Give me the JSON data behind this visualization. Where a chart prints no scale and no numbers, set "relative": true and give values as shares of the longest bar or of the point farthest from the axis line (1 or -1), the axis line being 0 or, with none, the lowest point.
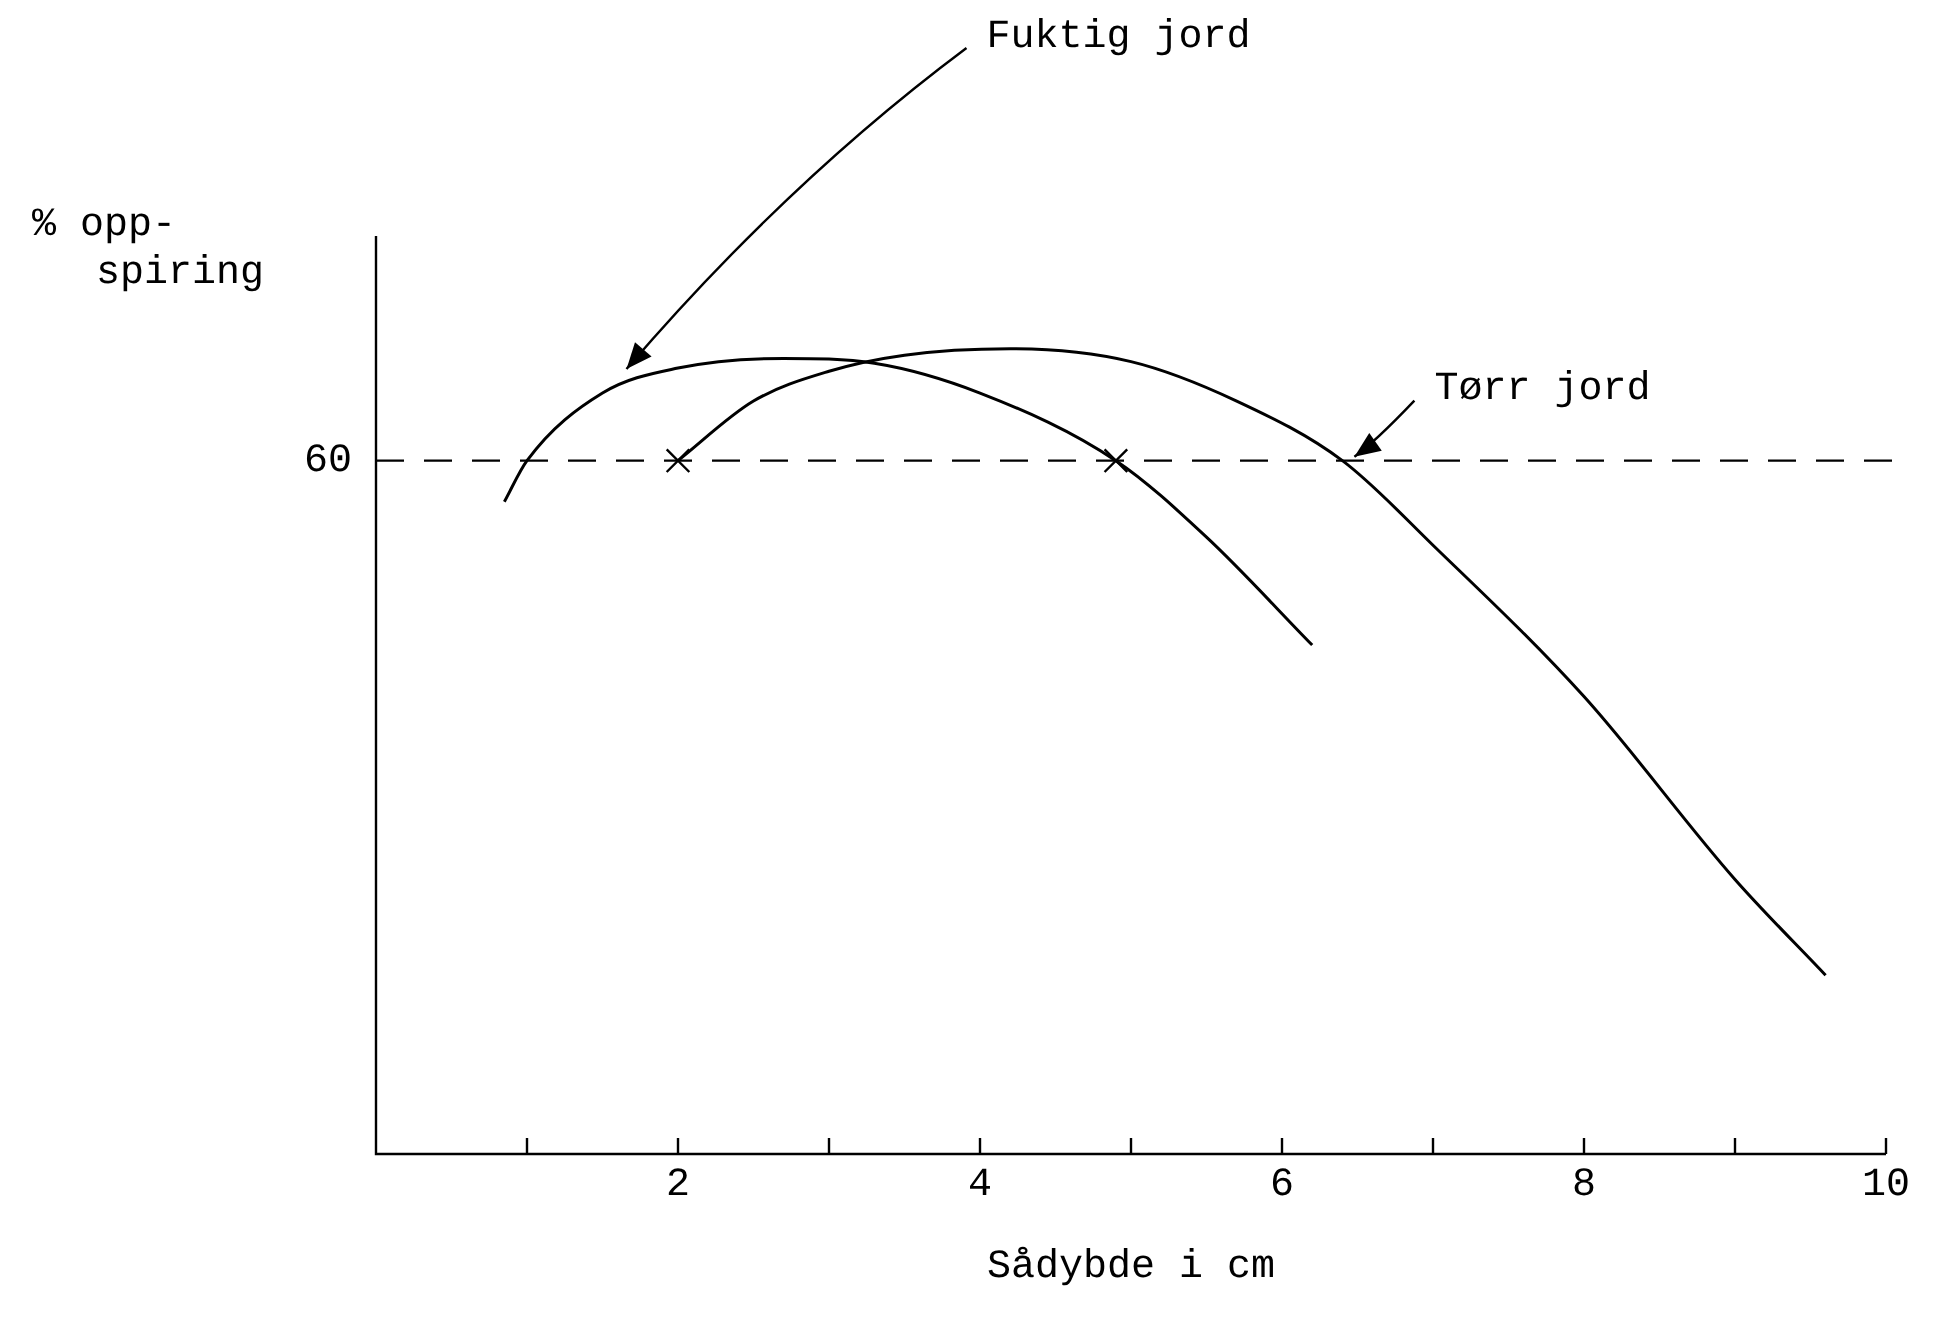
{
  "chart_data": {
    "type": "line",
    "relative": true,
    "xlabel": "Sådybde i cm",
    "ylabel": "% opp-\nspiring",
    "xlim": [
      0,
      10
    ],
    "xticks": [
      {
        "value": 1,
        "label": null
      },
      2,
      {
        "value": 3,
        "label": null
      },
      4,
      {
        "value": 5,
        "label": null
      },
      6,
      {
        "value": 7,
        "label": null
      },
      8,
      {
        "value": 9,
        "label": null
      },
      10
    ],
    "grid": false,
    "legend": false,
    "marker": "none",
    "line_style": "solid",
    "ref_lines": [
      {
        "axis": "y",
        "value": 0.861,
        "line_style": "dashed",
        "color": "#000000"
      }
    ],
    "annotations": [
      "60"
    ],
    "series": [
      {
        "name": "Fuktig jord",
        "color": "#000000",
        "x": [
          0.85,
          1.0,
          1.5,
          2.0,
          2.7,
          3.3,
          4.0,
          4.9,
          5.5,
          6.2
        ],
        "values": [
          0.81,
          0.861,
          0.945,
          0.976,
          0.988,
          0.982,
          0.945,
          0.861,
          0.766,
          0.632
        ]
      },
      {
        "name": "Tørr jord",
        "color": "#000000",
        "x": [
          2.0,
          2.5,
          3.0,
          3.5,
          4.2,
          5.0,
          5.7,
          6.4,
          7.0,
          8.0,
          9.0,
          9.6
        ],
        "values": [
          0.861,
          0.935,
          0.972,
          0.992,
          1.0,
          0.984,
          0.935,
          0.861,
          0.756,
          0.568,
          0.341,
          0.222
        ]
      },
      {
        "type": "scatter",
        "color": "#000000",
        "marker": "cross",
        "x": [
          2.0,
          4.9
        ],
        "values": [
          0.861,
          0.861
        ]
      }
    ]
  }
}
